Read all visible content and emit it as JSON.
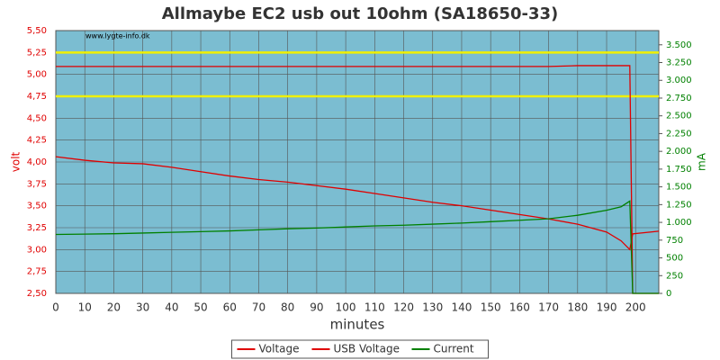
{
  "chart_data": {
    "type": "line",
    "title": "Allmaybe EC2 usb out 10ohm (SA18650-33)",
    "watermark": "www.lygte-info.dk",
    "xlabel": "minutes",
    "ylabel": "volt",
    "y2label": "mA",
    "x": [
      0,
      10,
      20,
      30,
      40,
      50,
      60,
      70,
      80,
      90,
      100,
      110,
      120,
      130,
      140,
      150,
      160,
      170,
      180,
      190,
      195,
      198,
      199,
      208
    ],
    "series": [
      {
        "name": "Voltage",
        "color": "#e00000",
        "values": [
          4.06,
          4.02,
          3.99,
          3.98,
          3.94,
          3.89,
          3.84,
          3.8,
          3.77,
          3.73,
          3.69,
          3.64,
          3.59,
          3.54,
          3.5,
          3.45,
          3.4,
          3.35,
          3.29,
          3.2,
          3.1,
          3.0,
          3.18,
          3.21
        ]
      },
      {
        "name": "USB Voltage",
        "color": "#e00000",
        "values": [
          5.09,
          5.09,
          5.09,
          5.09,
          5.09,
          5.09,
          5.09,
          5.09,
          5.09,
          5.09,
          5.09,
          5.09,
          5.09,
          5.09,
          5.09,
          5.09,
          5.09,
          5.09,
          5.1,
          5.1,
          5.1,
          5.1,
          2.5,
          2.5
        ]
      },
      {
        "name": "Current",
        "color": "#008000",
        "axis": "y2",
        "values": [
          830,
          835,
          840,
          850,
          860,
          870,
          880,
          895,
          910,
          920,
          935,
          950,
          960,
          975,
          990,
          1010,
          1030,
          1050,
          1100,
          1170,
          1220,
          1300,
          0,
          0
        ]
      }
    ],
    "reference_lines": [
      5.25,
      4.75
    ],
    "reference_color": "#f0f000",
    "xlim": [
      0,
      208
    ],
    "xticks": [
      0,
      10,
      20,
      30,
      40,
      50,
      60,
      70,
      80,
      90,
      100,
      110,
      120,
      130,
      140,
      150,
      160,
      170,
      180,
      190,
      200
    ],
    "ylim": [
      2.5,
      5.5
    ],
    "yticks": [
      {
        "value": 2.5,
        "label": "2,50"
      },
      {
        "value": 2.75,
        "label": "2,75"
      },
      {
        "value": 3,
        "label": "3,00"
      },
      {
        "value": 3.25,
        "label": "3,25"
      },
      {
        "value": 3.5,
        "label": "3,50"
      },
      {
        "value": 3.75,
        "label": "3,75"
      },
      {
        "value": 4,
        "label": "4,00"
      },
      {
        "value": 4.25,
        "label": "4,25"
      },
      {
        "value": 4.5,
        "label": "4,50"
      },
      {
        "value": 4.75,
        "label": "4,75"
      },
      {
        "value": 5,
        "label": "5,00"
      },
      {
        "value": 5.25,
        "label": "5,25"
      },
      {
        "value": 5.5,
        "label": "5,50"
      }
    ],
    "y2lim": [
      0,
      3700
    ],
    "y2ticks": [
      0,
      250,
      500,
      750,
      {
        "value": 1000,
        "label": "1.000"
      },
      {
        "value": 1250,
        "label": "1.250"
      },
      {
        "value": 1500,
        "label": "1.500"
      },
      {
        "value": 1750,
        "label": "1.750"
      },
      {
        "value": 2000,
        "label": "2.000"
      },
      {
        "value": 2250,
        "label": "2.250"
      },
      {
        "value": 2500,
        "label": "2.500"
      },
      {
        "value": 2750,
        "label": "2.750"
      },
      {
        "value": 3000,
        "label": "3.000"
      },
      {
        "value": 3250,
        "label": "3.250"
      },
      {
        "value": 3500,
        "label": "3.500"
      }
    ],
    "grid": true,
    "legend": "bottom",
    "plot_background": "#7bbdd1",
    "ycolor": "#e00000",
    "y2color": "#008000"
  }
}
